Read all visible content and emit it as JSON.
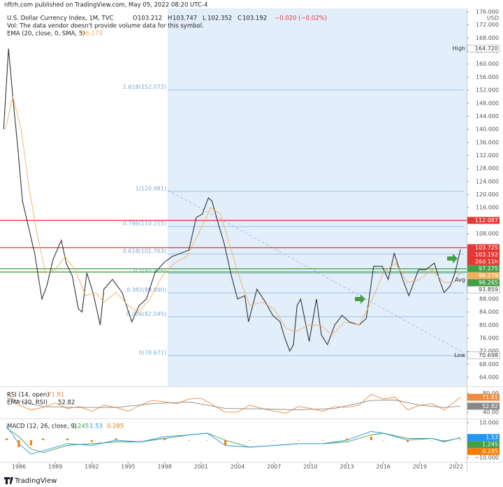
{
  "header": {
    "published": "nftrh.com published on TradingView.com, May 05, 2022 08:20 UTC-4",
    "symbol": "U.S. Dollar Currency Index, 1M, TVC",
    "ohlc": [
      {
        "label": "O",
        "value": 103.212
      },
      {
        "label": "H",
        "value": 103.747
      },
      {
        "label": "L",
        "value": 102.352
      },
      {
        "label": "C",
        "value": 103.192
      }
    ],
    "change": {
      "value": -0.02,
      "label": "−0.020 (−0.02%)"
    },
    "volume_note": "Vol: The data vendor doesn't provide volume data for this symbol.",
    "brand": "TradingView"
  },
  "chart_data": [
    {
      "type": "line",
      "currency": "USD",
      "xlim": [
        1984.45,
        2022.86
      ],
      "xticks": [
        1986,
        1989,
        1992,
        1995,
        1998,
        2001,
        2004,
        2007,
        2010,
        2013,
        2016,
        2019,
        2022
      ],
      "ylim": [
        64,
        176
      ],
      "yticks": [
        {
          "value": 64,
          "label": "64.000"
        },
        {
          "value": 68,
          "label": "68.000"
        },
        {
          "value": 72,
          "label": "72.000"
        },
        {
          "value": 76,
          "label": "76.000"
        },
        {
          "value": 80,
          "label": "80.000"
        },
        {
          "value": 84,
          "label": "84.000"
        },
        {
          "value": 88,
          "label": "88.000"
        },
        {
          "value": 92,
          "label": "92.000"
        },
        {
          "value": 96,
          "label": "96.000"
        },
        {
          "value": 100,
          "label": "100.000"
        },
        {
          "value": 104,
          "label": "104.000"
        },
        {
          "value": 108,
          "label": "108.000"
        },
        {
          "value": 112,
          "label": "112.000"
        },
        {
          "value": 116,
          "label": "116.000"
        },
        {
          "value": 120,
          "label": "120.000"
        },
        {
          "value": 124,
          "label": "124.000"
        },
        {
          "value": 128,
          "label": "128.000"
        },
        {
          "value": 132,
          "label": "132.000"
        },
        {
          "value": 136,
          "label": "136.000"
        },
        {
          "value": 140,
          "label": "140.000"
        },
        {
          "value": 144,
          "label": "144.000"
        },
        {
          "value": 148,
          "label": "148.000"
        },
        {
          "value": 152,
          "label": "152.000"
        },
        {
          "value": 156,
          "label": "156.000"
        },
        {
          "value": 160,
          "label": "160.000"
        },
        {
          "value": 164,
          "label": "164.000"
        },
        {
          "value": 168,
          "label": "168.000"
        },
        {
          "value": 172,
          "label": "172.000"
        },
        {
          "value": 176,
          "label": "176.000"
        }
      ],
      "series": [
        {
          "name": "U.S. Dollar Currency Index, 1M, TVC",
          "color": "#333333",
          "x": [
            1984.75,
            1985.15,
            1985.5,
            1985.9,
            1986.3,
            1986.8,
            1987.3,
            1987.9,
            1988.3,
            1988.8,
            1989.5,
            1989.9,
            1990.4,
            1990.9,
            1991.2,
            1991.6,
            1992.1,
            1992.7,
            1993.0,
            1993.7,
            1994.5,
            1995.3,
            1995.9,
            1996.5,
            1997.2,
            1997.9,
            1998.6,
            1999.3,
            2000.0,
            2000.6,
            2001.1,
            2001.6,
            2001.9,
            2002.5,
            2002.9,
            2003.5,
            2004.0,
            2004.6,
            2004.9,
            2005.6,
            2006.3,
            2006.9,
            2007.5,
            2007.9,
            2008.3,
            2008.6,
            2008.9,
            2009.2,
            2009.9,
            2010.5,
            2010.9,
            2011.4,
            2012.0,
            2012.6,
            2013.2,
            2014.0,
            2014.6,
            2015.2,
            2015.9,
            2016.4,
            2016.9,
            2017.6,
            2018.1,
            2018.9,
            2019.5,
            2020.2,
            2020.7,
            2021.0,
            2021.5,
            2021.9,
            2022.35
          ],
          "values": [
            140,
            164.72,
            150,
            135,
            118,
            110,
            102,
            88,
            92,
            100,
            106,
            99,
            95,
            85,
            84,
            96,
            90,
            80,
            91,
            94,
            90,
            81,
            86,
            88,
            96,
            99,
            101,
            102,
            103,
            113,
            114,
            119,
            118,
            110,
            105,
            95,
            88,
            89,
            81,
            91,
            87,
            83,
            81,
            76,
            72,
            74,
            86,
            88,
            75,
            88,
            77,
            74,
            80,
            83,
            81,
            80,
            82,
            98,
            98,
            94,
            102,
            94,
            89,
            97,
            97,
            99,
            93,
            90,
            92,
            96,
            103.192
          ]
        },
        {
          "name": "EMA (20, close, 0, SMA, 5)",
          "color": "#f2b05e",
          "x": [
            1984.9,
            1985.5,
            1986.2,
            1986.8,
            1987.5,
            1988.2,
            1989.0,
            1989.8,
            1990.6,
            1991.5,
            1992.3,
            1993.0,
            1994.0,
            1995.0,
            1995.8,
            1996.8,
            1997.8,
            1998.8,
            1999.8,
            2000.8,
            2001.8,
            2002.6,
            2003.4,
            2004.3,
            2005.0,
            2006.0,
            2007.0,
            2008.0,
            2008.8,
            2009.8,
            2010.8,
            2011.8,
            2012.8,
            2014.0,
            2015.0,
            2016.0,
            2017.0,
            2018.0,
            2019.0,
            2020.0,
            2021.0,
            2021.8,
            2022.35
          ],
          "values": [
            140,
            150,
            140,
            123,
            108,
            96,
            97,
            101,
            97,
            89,
            90,
            87,
            90,
            86,
            84,
            88,
            95,
            99,
            101,
            108,
            116,
            114,
            104,
            93,
            86,
            87,
            85,
            79,
            78,
            80,
            80,
            77,
            81,
            80,
            87,
            96,
            99,
            93,
            94,
            97,
            93,
            93,
            96.279
          ]
        }
      ],
      "countdown": "26d 11h",
      "hlines": [
        {
          "value": 112.087,
          "color": "#e53935"
        },
        {
          "value": 103.725,
          "color": "#e53935"
        },
        {
          "value": 97.275,
          "color": "#43a047"
        },
        {
          "value": 96.265,
          "color": "#43a047"
        }
      ],
      "fib_levels": [
        {
          "label": "1.618(152.072)",
          "value": 152.072
        },
        {
          "label": "1(120.981)",
          "value": 120.981
        },
        {
          "label": "0.786(110.215)",
          "value": 110.215
        },
        {
          "label": "0.618(101.763)",
          "value": 101.763
        },
        {
          "label": "0.5(95.826)",
          "value": 95.826
        },
        {
          "label": "0.382(89.890)",
          "value": 89.89
        },
        {
          "label": "0.236(82.545)",
          "value": 82.545
        },
        {
          "label": "0(70.671)",
          "value": 70.671
        }
      ],
      "stats": [
        {
          "name": "High",
          "value": {
            "value": 164.72,
            "label": "164.720"
          }
        },
        {
          "name": "Avg",
          "value": 93.859
        },
        {
          "name": "Low",
          "value": 70.698
        }
      ]
    },
    {
      "type": "line",
      "ylim": [
        28,
        92
      ],
      "yticks": [
        {
          "value": 80,
          "label": "80.00"
        },
        {
          "value": 40,
          "label": "40.00"
        }
      ],
      "series": [
        {
          "name": "RSI (14, open)",
          "color": "#f08a3c",
          "x": [
            1985,
            1986,
            1987,
            1988,
            1989,
            1990,
            1991,
            1992,
            1993,
            1994,
            1995,
            1996,
            1997,
            1998,
            1999,
            2000,
            2001,
            2002,
            2003,
            2004,
            2005,
            2006,
            2007,
            2008,
            2009,
            2010,
            2011,
            2012,
            2013,
            2014,
            2015,
            2016,
            2017,
            2018,
            2019,
            2020,
            2021,
            2022.35
          ],
          "values": [
            80,
            55,
            45,
            50,
            60,
            48,
            52,
            42,
            55,
            50,
            42,
            55,
            65,
            62,
            58,
            68,
            70,
            55,
            40,
            40,
            55,
            48,
            42,
            38,
            52,
            48,
            42,
            52,
            50,
            55,
            78,
            68,
            72,
            45,
            55,
            58,
            45,
            71.81
          ]
        },
        {
          "name": "EMA (20, RSI)",
          "color": "#888888",
          "x": [
            1985,
            1988,
            1991,
            1994,
            1997,
            2000,
            2003,
            2006,
            2009,
            2012,
            2015,
            2017,
            2019,
            2021,
            2022.35
          ],
          "values": [
            70,
            52,
            50,
            50,
            58,
            62,
            48,
            47,
            45,
            48,
            65,
            66,
            55,
            50,
            52.82
          ]
        }
      ]
    },
    {
      "type": "line",
      "title": "MACD (12, 26, close, 9)",
      "ylim": [
        -12,
        12
      ],
      "yticks": [
        {
          "value": 10,
          "label": "10.000"
        },
        {
          "value": -10,
          "label": "−10.000"
        }
      ],
      "series": [
        {
          "color": "#43a047",
          "kind": "line",
          "x": [
            1985,
            1986,
            1987,
            1988,
            1990,
            1992,
            1994,
            1996,
            1998,
            2000,
            2001.5,
            2003,
            2005,
            2007,
            2009,
            2011,
            2013,
            2015,
            2016,
            2018,
            2020,
            2021,
            2022.35
          ],
          "values": [
            7,
            2,
            -5,
            -7,
            -3,
            -2,
            -1,
            -1,
            1,
            3,
            4,
            0,
            -4,
            -3,
            -2,
            -2,
            -1,
            3,
            4,
            1,
            1,
            -0.5,
            1.245
          ]
        },
        {
          "color": "#2196f3",
          "kind": "line",
          "x": [
            1985,
            1986,
            1987,
            1988,
            1990,
            1992,
            1994,
            1996,
            1998,
            2000,
            2001.5,
            2003,
            2005,
            2007,
            2009,
            2011,
            2013,
            2015,
            2016,
            2018,
            2020,
            2021,
            2022.35
          ],
          "values": [
            8,
            -2,
            -8,
            -6,
            -2,
            -3,
            0,
            -1,
            2,
            3,
            4,
            -3,
            -4,
            -3,
            -2,
            -2,
            0,
            5,
            4,
            0,
            1,
            -1,
            1.53
          ]
        },
        {
          "color": "#f57c00",
          "kind": "bar",
          "x": [
            1985,
            1986,
            1987,
            1988,
            1990,
            1992,
            1994,
            1996,
            1998,
            2000,
            2001.5,
            2003,
            2005,
            2007,
            2009,
            2011,
            2013,
            2015,
            2016,
            2018,
            2020,
            2021,
            2022.35
          ],
          "values": [
            1,
            -4,
            -3,
            1,
            1,
            -1,
            1,
            0,
            1,
            0,
            0,
            -3,
            0,
            0,
            0,
            0,
            1,
            2,
            0,
            -1,
            0,
            -0.5,
            0.285
          ]
        }
      ]
    }
  ]
}
